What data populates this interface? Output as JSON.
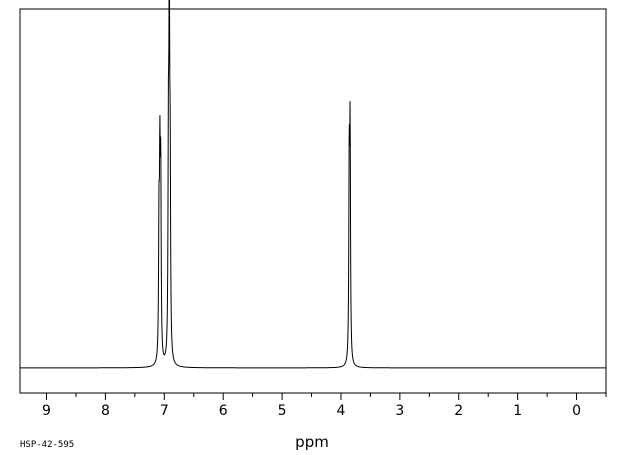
{
  "chart_data": {
    "type": "line",
    "title": "",
    "xlabel": "ppm",
    "ylabel": "",
    "x_reversed": true,
    "xlim": [
      9.45,
      -0.5
    ],
    "ylim": [
      -0.07,
      1.0
    ],
    "grid": false,
    "x_ticks": [
      9,
      8,
      7,
      6,
      5,
      4,
      3,
      2,
      1,
      0
    ],
    "x_tick_labels": [
      "9",
      "8",
      "7",
      "6",
      "5",
      "4",
      "3",
      "2",
      "1",
      "0"
    ],
    "peaks": [
      {
        "x": 7.09,
        "y": 0.37,
        "width": 0.008
      },
      {
        "x": 7.075,
        "y": 0.51,
        "width": 0.008
      },
      {
        "x": 7.06,
        "y": 0.5,
        "width": 0.008
      },
      {
        "x": 6.93,
        "y": 0.56,
        "width": 0.008
      },
      {
        "x": 6.915,
        "y": 0.99,
        "width": 0.008
      },
      {
        "x": 6.9,
        "y": 0.47,
        "width": 0.008
      },
      {
        "x": 3.86,
        "y": 0.54,
        "width": 0.008
      },
      {
        "x": 3.845,
        "y": 0.62,
        "width": 0.008
      }
    ],
    "series": [
      {
        "x": [],
        "y": []
      }
    ]
  },
  "footer": {
    "sample_id": "HSP-42-595"
  }
}
